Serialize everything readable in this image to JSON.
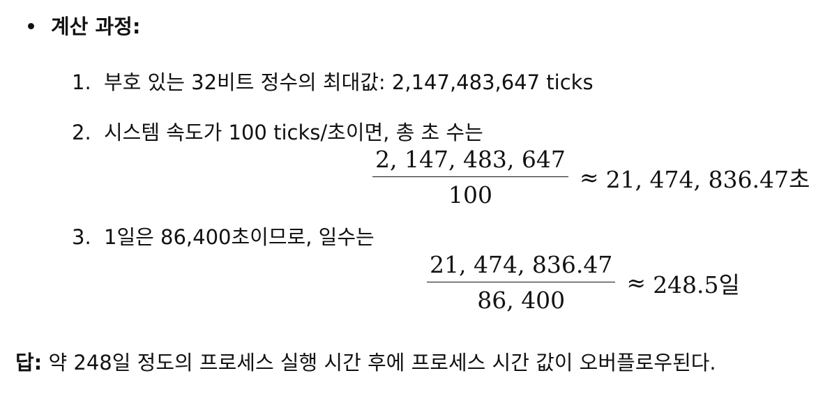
{
  "section": {
    "heading": "계산 과정:"
  },
  "steps": [
    {
      "number": "1.",
      "text": "부호 있는 32비트 정수의 최대값: 2,147,483,647 ticks"
    },
    {
      "number": "2.",
      "text": "시스템 속도가 100 ticks/초이면, 총 초 수는",
      "formula": {
        "numerator": "2, 147, 483, 647",
        "denominator": "100",
        "approx": "≈",
        "result": "21, 474, 836.47초"
      }
    },
    {
      "number": "3.",
      "text": "1일은 86,400초이므로, 일수는",
      "formula": {
        "numerator": "21, 474, 836.47",
        "denominator": "86, 400",
        "approx": "≈",
        "result": "248.5일"
      }
    }
  ],
  "answer": {
    "label": "답:",
    "text": " 약 248일 정도의 프로세스 실행 시간 후에 프로세스 시간 값이 오버플로우된다."
  }
}
